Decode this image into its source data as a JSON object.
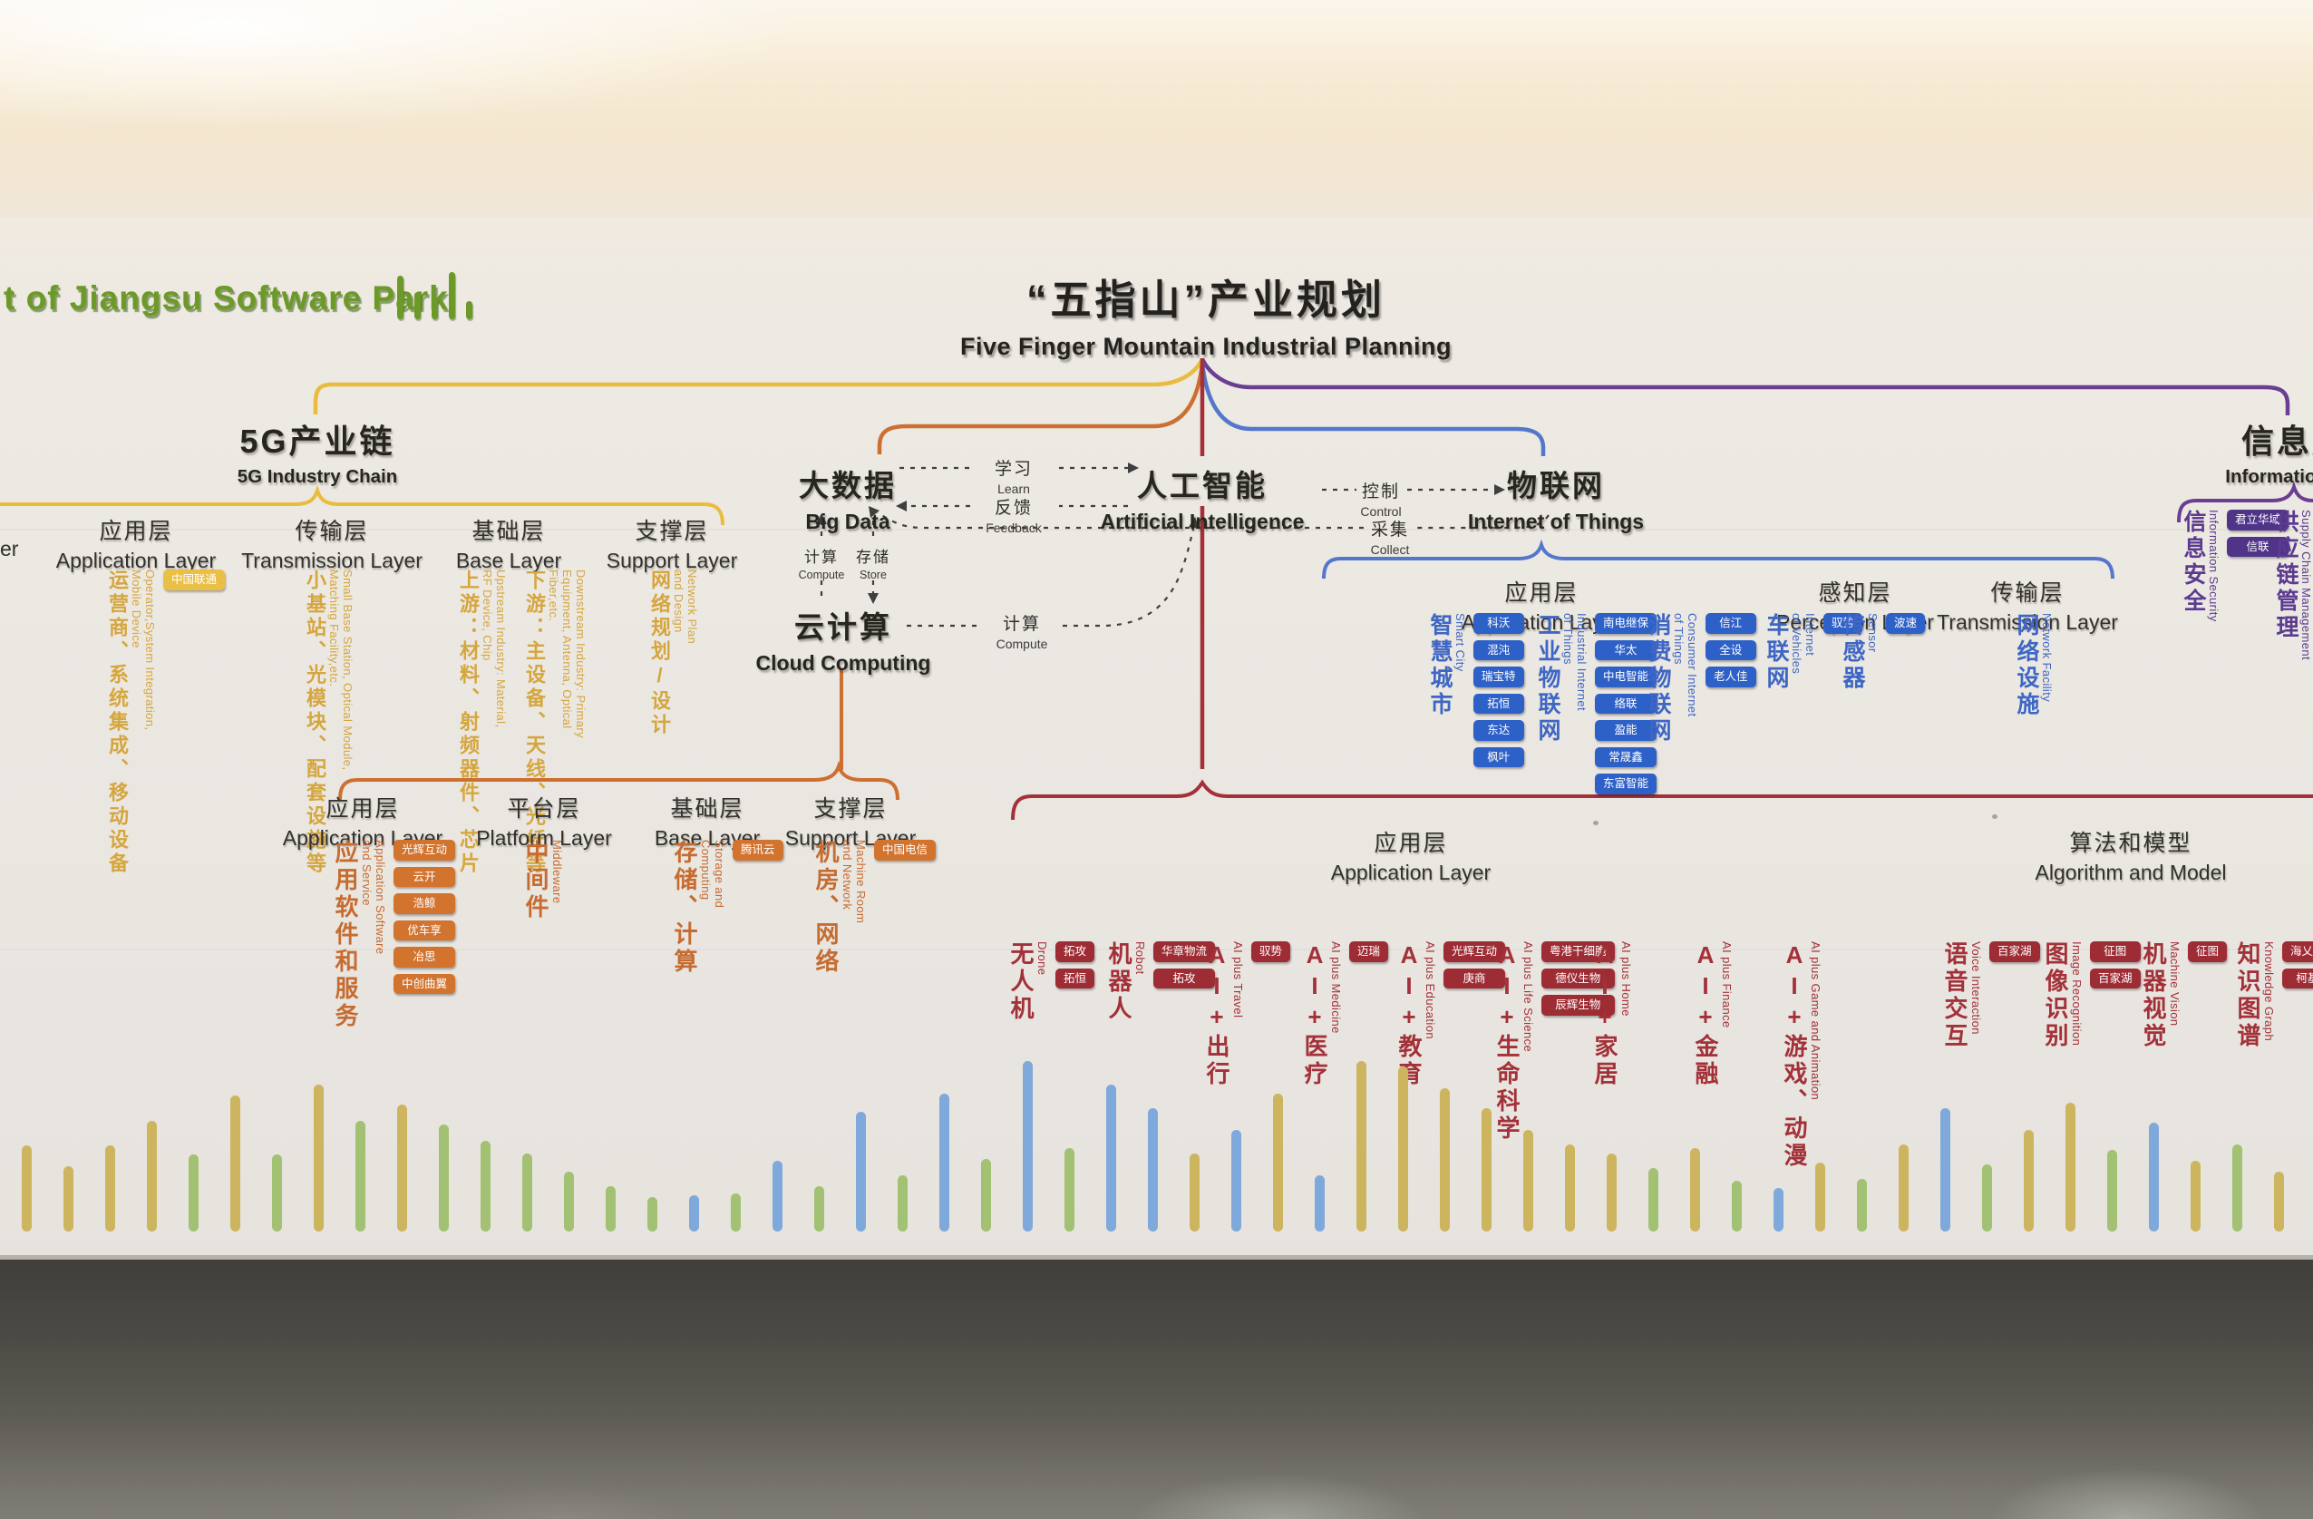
{
  "sign": {
    "text": "t of Jiangsu Software Park"
  },
  "title": {
    "cn": "“五指山”产业规划",
    "en": "Five Finger Mountain Industrial Planning"
  },
  "edge_fragment": "er",
  "flow": {
    "big_data": {
      "cn": "大数据",
      "en": "Big Data"
    },
    "ai": {
      "cn": "人工智能",
      "en": "Artificial Intelligence"
    },
    "iot": {
      "cn": "物联网",
      "en": "Internet of Things"
    },
    "cloud": {
      "cn": "云计算",
      "en": "Cloud Computing"
    },
    "learn": {
      "cn": "学习",
      "en": "Learn"
    },
    "feedback": {
      "cn": "反馈",
      "en": "Feedback"
    },
    "control": {
      "cn": "控制",
      "en": "Control"
    },
    "collect": {
      "cn": "采集",
      "en": "Collect"
    },
    "compute": {
      "cn": "计算",
      "en": "Compute"
    },
    "store": {
      "cn": "存储",
      "en": "Store"
    },
    "compute2": {
      "cn": "计算",
      "en": "Compute"
    }
  },
  "g5": {
    "heading": {
      "cn": "5G产业链",
      "en": "5G Industry Chain"
    },
    "columns": [
      {
        "cn": "应用层",
        "en": "Application Layer",
        "items": [
          {
            "cn": "运营商、系统集成、移动设备",
            "en": "Operator,System Integration,\nMobile Device",
            "badges": [
              "中国联通"
            ]
          }
        ]
      },
      {
        "cn": "传输层",
        "en": "Transmission Layer",
        "items": [
          {
            "cn": "小基站、光模块、配套设施等",
            "en": "Small Base Station, Optical Module,\nMatching Facility,etc.",
            "badges": []
          }
        ]
      },
      {
        "cn": "基础层",
        "en": "Base Layer",
        "items": [
          {
            "cn": "上游：材料、射频器件、芯片",
            "en": "Upstream Industry: Material,\nRF Device, Chip",
            "badges": []
          },
          {
            "cn": "下游：主设备、天线、光纤等",
            "en": "Downstream Industry: Primary\nEquipment, Antenna, Optical\nFiber,etc.",
            "badges": []
          }
        ]
      },
      {
        "cn": "支撑层",
        "en": "Support Layer",
        "items": [
          {
            "cn": "网络规划/设计",
            "en": "Network Plan\nand Design",
            "badges": []
          }
        ]
      }
    ]
  },
  "cloud_section": {
    "columns": [
      {
        "cn": "应用层",
        "en": "Application Layer",
        "items": [
          {
            "cn": "应用软件和服务",
            "en": "Application Software\nand Service",
            "badges": [
              "光辉互动",
              "云开",
              "浩鲸",
              "优车享",
              "冶思",
              "中创曲翼"
            ]
          }
        ]
      },
      {
        "cn": "平台层",
        "en": "Platform Layer",
        "items": [
          {
            "cn": "中间件",
            "en": "Middleware",
            "badges": []
          }
        ]
      },
      {
        "cn": "基础层",
        "en": "Base Layer",
        "items": [
          {
            "cn": "存储、计算",
            "en": "Storage and\nComputing",
            "badges": [
              "腾讯云"
            ]
          }
        ]
      },
      {
        "cn": "支撑层",
        "en": "Support Layer",
        "items": [
          {
            "cn": "机房、网络",
            "en": "Machine Room\nand Network",
            "badges": [
              "中国电信"
            ]
          }
        ]
      }
    ]
  },
  "iot_section": {
    "app": {
      "cn": "应用层",
      "en": "Application Layer",
      "items": [
        {
          "cn": "智慧城市",
          "en": "Smart City",
          "badges": [
            "科沃",
            "混沌",
            "瑞宝特",
            "拓恒",
            "东达",
            "枫叶"
          ]
        },
        {
          "cn": "工业物联网",
          "en": "Industrial Internet\nof Things",
          "badges": [
            "南电继保",
            "华太",
            "中电智能",
            "络联",
            "盈能",
            "常晟鑫",
            "东富智能"
          ]
        },
        {
          "cn": "消费物联网",
          "en": "Consumer Internet\nof Things",
          "badges": [
            "信江",
            "全设",
            "老人佳"
          ]
        },
        {
          "cn": "车联网",
          "en": "Internet\nof Vehicles",
          "badges": [
            "驭势"
          ]
        }
      ]
    },
    "perception": {
      "cn": "感知层",
      "en": "Perception Layer",
      "items": [
        {
          "cn": "传感器",
          "en": "Sensor",
          "badges": [
            "波速"
          ]
        }
      ]
    },
    "transmission": {
      "cn": "传输层",
      "en": "Transmission Layer",
      "items": [
        {
          "cn": "网络设施",
          "en": "Network Facility",
          "badges": []
        }
      ]
    }
  },
  "ai_section": {
    "app": {
      "cn": "应用层",
      "en": "Application Layer",
      "items": [
        {
          "cn": "无人机",
          "en": "Drone",
          "badges": [
            "拓攻",
            "拓恒"
          ]
        },
        {
          "cn": "机器人",
          "en": "Robot",
          "badges": [
            "华章物流",
            "拓攻"
          ]
        },
        {
          "cn": "AI+出行",
          "en": "AI plus Travel",
          "badges": [
            "驭势"
          ]
        },
        {
          "cn": "AI+医疗",
          "en": "AI plus Medicine",
          "badges": [
            "迈瑞"
          ]
        },
        {
          "cn": "AI+教育",
          "en": "AI plus Education",
          "badges": [
            "光辉互动",
            "庚商"
          ]
        },
        {
          "cn": "AI+生命科学",
          "en": "AI plus Life Science",
          "badges": [
            "粤港干细胞",
            "德仪生物",
            "辰辉生物"
          ]
        },
        {
          "cn": "AI+家居",
          "en": "AI plus Home",
          "badges": []
        },
        {
          "cn": "AI+金融",
          "en": "AI plus Finance",
          "badges": []
        },
        {
          "cn": "AI+游戏、动漫",
          "en": "AI plus Game and Animation",
          "badges": []
        }
      ]
    },
    "algo": {
      "cn": "算法和模型",
      "en": "Algorithm and Model",
      "items": [
        {
          "cn": "语音交互",
          "en": "Voice Interaction",
          "badges": [
            "百家湖"
          ]
        },
        {
          "cn": "图像识别",
          "en": "Image Recognition",
          "badges": [
            "征图",
            "百家湖"
          ]
        },
        {
          "cn": "机器视觉",
          "en": "Machine Vision",
          "badges": [
            "征图"
          ]
        },
        {
          "cn": "知识图谱",
          "en": "Knowledge Graph",
          "badges": [
            "海乂知",
            "柯基"
          ]
        }
      ]
    }
  },
  "info_section": {
    "heading": {
      "cn": "信息服务",
      "en": "Information Service"
    },
    "items": [
      {
        "cn": "信息安全",
        "en": "Information Security",
        "badges": [
          "君立华域",
          "信联"
        ]
      },
      {
        "cn": "供应链管理",
        "en": "Supply Chain Management",
        "badges": [
          ""
        ]
      }
    ]
  },
  "colors": {
    "gold": "#E9BC3F",
    "orange": "#CD6F31",
    "red": "#A43038",
    "blue": "#5377CB",
    "purple": "#6B3E92",
    "dash": "#3f3f3f",
    "sign_green": "#6C9A28",
    "bar_tan": "#CDB55F",
    "bar_green": "#A3C173",
    "bar_blue": "#7FA9DA"
  },
  "equalizer": {
    "bars": [
      {
        "c": "tan",
        "h": 95
      },
      {
        "c": "tan",
        "h": 72
      },
      {
        "c": "tan",
        "h": 95
      },
      {
        "c": "tan",
        "h": 122
      },
      {
        "c": "green",
        "h": 85
      },
      {
        "c": "tan",
        "h": 150
      },
      {
        "c": "green",
        "h": 85
      },
      {
        "c": "tan",
        "h": 162
      },
      {
        "c": "green",
        "h": 122
      },
      {
        "c": "tan",
        "h": 140
      },
      {
        "c": "green",
        "h": 118
      },
      {
        "c": "green",
        "h": 100
      },
      {
        "c": "green",
        "h": 86
      },
      {
        "c": "green",
        "h": 66
      },
      {
        "c": "green",
        "h": 50
      },
      {
        "c": "green",
        "h": 38
      },
      {
        "c": "blue",
        "h": 40
      },
      {
        "c": "green",
        "h": 42
      },
      {
        "c": "blue",
        "h": 78
      },
      {
        "c": "green",
        "h": 50
      },
      {
        "c": "blue",
        "h": 132
      },
      {
        "c": "green",
        "h": 62
      },
      {
        "c": "blue",
        "h": 152
      },
      {
        "c": "green",
        "h": 80
      },
      {
        "c": "blue",
        "h": 188
      },
      {
        "c": "green",
        "h": 92
      },
      {
        "c": "blue",
        "h": 162
      },
      {
        "c": "blue",
        "h": 136
      },
      {
        "c": "tan",
        "h": 86
      },
      {
        "c": "blue",
        "h": 112
      },
      {
        "c": "tan",
        "h": 152
      },
      {
        "c": "blue",
        "h": 62
      },
      {
        "c": "tan",
        "h": 188
      },
      {
        "c": "tan",
        "h": 182
      },
      {
        "c": "tan",
        "h": 158
      },
      {
        "c": "tan",
        "h": 136
      },
      {
        "c": "tan",
        "h": 112
      },
      {
        "c": "tan",
        "h": 96
      },
      {
        "c": "tan",
        "h": 86
      },
      {
        "c": "green",
        "h": 70
      },
      {
        "c": "tan",
        "h": 92
      },
      {
        "c": "green",
        "h": 56
      },
      {
        "c": "blue",
        "h": 48
      },
      {
        "c": "tan",
        "h": 76
      },
      {
        "c": "green",
        "h": 58
      },
      {
        "c": "tan",
        "h": 96
      },
      {
        "c": "blue",
        "h": 136
      },
      {
        "c": "green",
        "h": 74
      },
      {
        "c": "tan",
        "h": 112
      },
      {
        "c": "tan",
        "h": 142
      },
      {
        "c": "green",
        "h": 90
      },
      {
        "c": "blue",
        "h": 120
      },
      {
        "c": "tan",
        "h": 78
      },
      {
        "c": "green",
        "h": 96
      },
      {
        "c": "tan",
        "h": 66
      }
    ]
  }
}
